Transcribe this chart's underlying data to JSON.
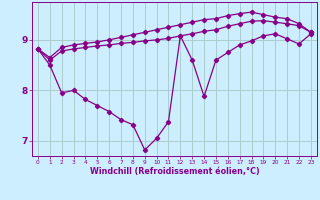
{
  "xlabel": "Windchill (Refroidissement éolien,°C)",
  "bg_color": "#cceeff",
  "grid_color": "#aacccc",
  "line_color": "#880088",
  "xlim": [
    -0.5,
    23.5
  ],
  "ylim": [
    6.7,
    9.75
  ],
  "xticks": [
    0,
    1,
    2,
    3,
    4,
    5,
    6,
    7,
    8,
    9,
    10,
    11,
    12,
    13,
    14,
    15,
    16,
    17,
    18,
    19,
    20,
    21,
    22,
    23
  ],
  "yticks": [
    7,
    8,
    9
  ],
  "line1_x": [
    0,
    1,
    2,
    3,
    4,
    5,
    6,
    7,
    8,
    9,
    10,
    11,
    12,
    13,
    14,
    15,
    16,
    17,
    18,
    19,
    20,
    21,
    22,
    23
  ],
  "line1_y": [
    8.82,
    8.65,
    8.85,
    8.9,
    8.93,
    8.96,
    9.0,
    9.05,
    9.1,
    9.15,
    9.2,
    9.25,
    9.3,
    9.35,
    9.4,
    9.42,
    9.48,
    9.52,
    9.55,
    9.5,
    9.45,
    9.42,
    9.32,
    9.15
  ],
  "line2_x": [
    0,
    1,
    2,
    3,
    4,
    5,
    6,
    7,
    8,
    9,
    10,
    11,
    12,
    13,
    14,
    15,
    16,
    17,
    18,
    19,
    20,
    21,
    22,
    23
  ],
  "line2_y": [
    8.82,
    8.6,
    8.78,
    8.82,
    8.85,
    8.88,
    8.9,
    8.93,
    8.95,
    8.98,
    9.0,
    9.03,
    9.08,
    9.12,
    9.17,
    9.2,
    9.27,
    9.32,
    9.37,
    9.38,
    9.35,
    9.32,
    9.28,
    9.15
  ],
  "line3_x": [
    0,
    1,
    2,
    3,
    4,
    5,
    6,
    7,
    8,
    9,
    10,
    11,
    12,
    13,
    14,
    15,
    16,
    17,
    18,
    19,
    20,
    21,
    22,
    23
  ],
  "line3_y": [
    8.82,
    8.5,
    7.95,
    8.0,
    7.82,
    7.7,
    7.58,
    7.42,
    7.32,
    6.82,
    7.05,
    7.38,
    9.08,
    8.6,
    7.88,
    8.6,
    8.75,
    8.9,
    8.98,
    9.08,
    9.12,
    9.02,
    8.92,
    9.12
  ]
}
